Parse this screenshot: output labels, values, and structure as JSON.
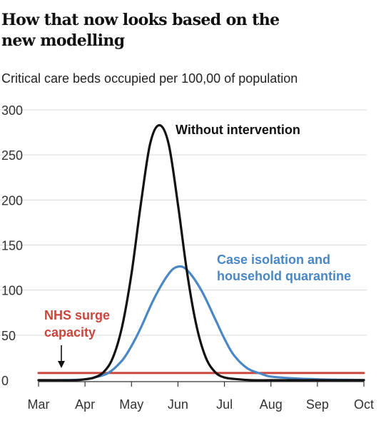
{
  "chart_data": {
    "type": "line",
    "title": "How that now looks based on the new modelling",
    "subtitle": "Critical care beds occupied per 100,00 of population",
    "xlabel": "",
    "ylabel": "",
    "x_categories": [
      "Mar",
      "Apr",
      "May",
      "Jun",
      "Jul",
      "Aug",
      "Sep",
      "Oct"
    ],
    "ylim": [
      0,
      300
    ],
    "yticks": [
      0,
      50,
      100,
      150,
      200,
      250,
      300
    ],
    "grid": true,
    "series": [
      {
        "name": "Without intervention",
        "color": "#111111",
        "x": [
          0,
          0.5,
          0.8,
          1.0,
          1.2,
          1.4,
          1.6,
          1.8,
          2.0,
          2.2,
          2.4,
          2.6,
          2.8,
          3.0,
          3.2,
          3.4,
          3.6,
          3.8,
          4.0,
          4.3,
          4.6,
          5.0,
          5.5,
          6.0,
          7.0
        ],
        "values": [
          0,
          0,
          0,
          1,
          3,
          9,
          25,
          60,
          118,
          195,
          262,
          283,
          262,
          195,
          118,
          60,
          25,
          9,
          3,
          1,
          0,
          0,
          0,
          0,
          0
        ]
      },
      {
        "name": "Case isolation and household quarantine",
        "color": "#4a87c5",
        "x": [
          0,
          0.5,
          1.0,
          1.2,
          1.5,
          1.8,
          2.0,
          2.2,
          2.5,
          2.8,
          3.0,
          3.2,
          3.5,
          3.8,
          4.0,
          4.2,
          4.5,
          4.8,
          5.0,
          5.5,
          6.0,
          6.5,
          7.0
        ],
        "values": [
          0,
          0,
          1,
          3,
          8,
          22,
          38,
          58,
          92,
          118,
          126,
          122,
          100,
          68,
          46,
          28,
          13,
          7,
          4,
          2,
          1,
          0.5,
          0.2
        ]
      },
      {
        "name": "NHS surge capacity",
        "color": "#c9463d",
        "x": [
          0,
          7
        ],
        "values": [
          8,
          8
        ]
      }
    ],
    "annotations": {
      "without_intervention": "Without intervention",
      "isolation_line1": "Case isolation and",
      "isolation_line2": "household quarantine",
      "nhs_line1": "NHS surge",
      "nhs_line2": "capacity"
    }
  }
}
